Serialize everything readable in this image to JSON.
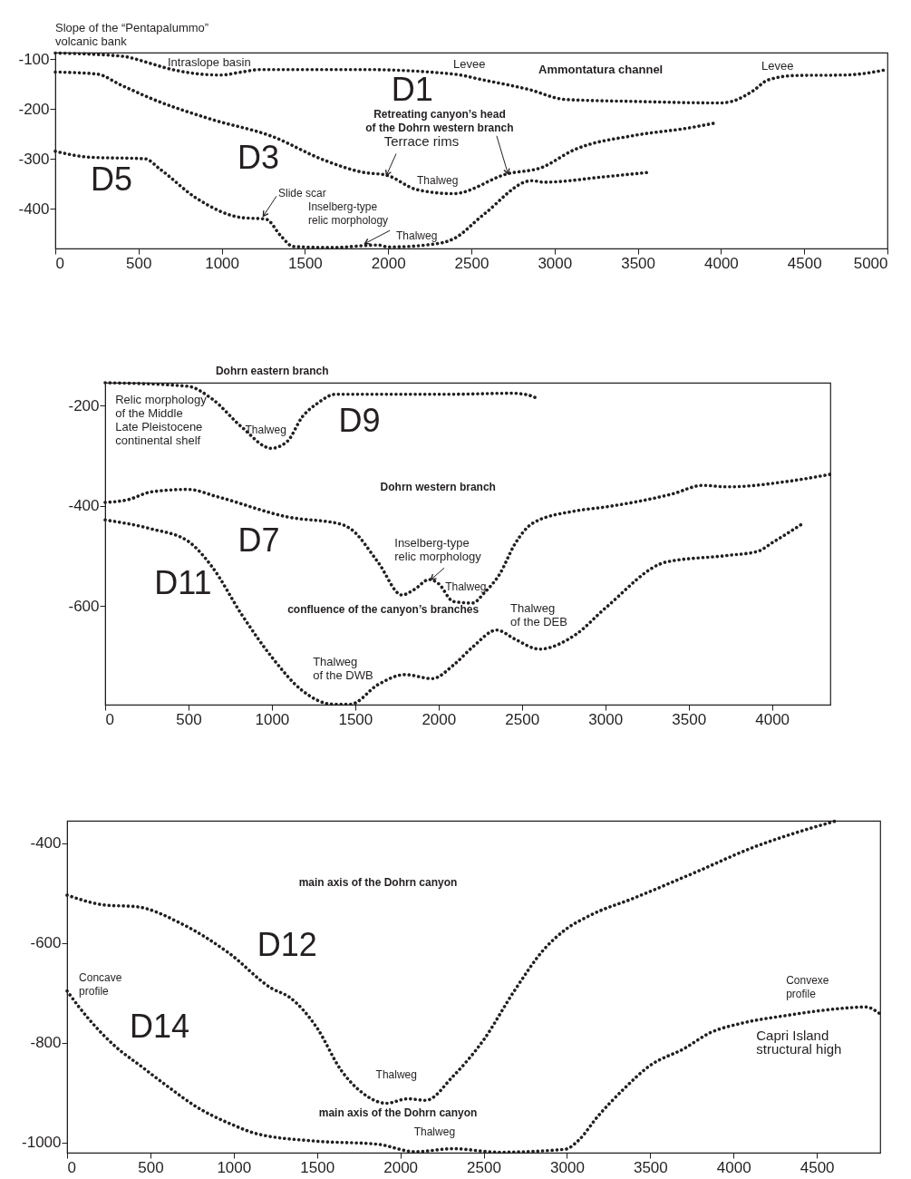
{
  "chart_data": [
    {
      "type": "line",
      "line_style": "dotted",
      "xlim": [
        0,
        5000
      ],
      "xticks": [
        0,
        500,
        1000,
        1500,
        2000,
        2500,
        3000,
        3500,
        4000,
        4500,
        5000
      ],
      "ylim": [
        -480,
        -87
      ],
      "yticks": [
        -100,
        -200,
        -300,
        -400
      ],
      "series": [
        {
          "name": "D1",
          "color": "#231f20",
          "x": [
            0,
            394,
            575,
            666,
            993,
            1120,
            1229,
            1846,
            2391,
            2573,
            2845,
            3064,
            3482,
            3991,
            4064,
            4191,
            4282,
            4445,
            4745,
            5000
          ],
          "values": [
            -88,
            -94,
            -109,
            -118,
            -132,
            -126,
            -121,
            -121,
            -130,
            -142,
            -161,
            -181,
            -185,
            -188,
            -185,
            -164,
            -142,
            -133,
            -132,
            -121
          ]
        },
        {
          "name": "D3",
          "color": "#231f20",
          "x": [
            0,
            249,
            394,
            575,
            939,
            1302,
            1610,
            1846,
            1991,
            2173,
            2391,
            2718,
            2918,
            3118,
            3482,
            3809,
            3955
          ],
          "values": [
            -126,
            -130,
            -152,
            -179,
            -221,
            -255,
            -302,
            -327,
            -333,
            -362,
            -370,
            -330,
            -318,
            -282,
            -253,
            -238,
            -229
          ]
        },
        {
          "name": "D5",
          "color": "#231f20",
          "x": [
            0,
            212,
            539,
            630,
            848,
            1120,
            1265,
            1356,
            1429,
            1665,
            1938,
            2000,
            2300,
            2391,
            2573,
            2864,
            2936,
            3300,
            3573
          ],
          "values": [
            -285,
            -297,
            -300,
            -321,
            -379,
            -418,
            -421,
            -455,
            -476,
            -478,
            -473,
            -477,
            -470,
            -461,
            -412,
            -344,
            -347,
            -336,
            -327
          ]
        }
      ],
      "annotations": [
        "Slope of the “Pentapalummo”\nvolcanic bank",
        "Intraslope basin",
        "Levee",
        "Ammontatura channel",
        "Levee",
        {
          "text": "Retreating canyon’s head\nof the Dohrn western branch",
          "x": 2720,
          "y": -330
        },
        {
          "text": "Terrace rims",
          "x": 1990,
          "y": -333
        },
        "Thalweg",
        {
          "text": "Slide scar",
          "x": 1250,
          "y": -415
        },
        {
          "text": "Inselberg-type\nrelic morphology",
          "x": 1860,
          "y": -470
        },
        "Thalweg"
      ]
    },
    {
      "type": "line",
      "line_style": "dotted",
      "xlim": [
        0,
        4350
      ],
      "xticks": [
        0,
        500,
        1000,
        1500,
        2000,
        2500,
        3000,
        3500,
        4000
      ],
      "ylim": [
        -797,
        -154
      ],
      "yticks": [
        -200,
        -400,
        -600
      ],
      "series": [
        {
          "name": "D9",
          "color": "#231f20",
          "x": [
            0,
            495,
            640,
            821,
            997,
            1093,
            1183,
            1274,
            1383,
            2089,
            2440,
            2531,
            2595
          ],
          "values": [
            -154,
            -161,
            -186,
            -243,
            -285,
            -271,
            -222,
            -195,
            -177,
            -177,
            -175,
            -178,
            -186
          ]
        },
        {
          "name": "D7",
          "color": "#231f20",
          "x": [
            0,
            132,
            277,
            495,
            676,
            1093,
            1419,
            1473,
            1636,
            1781,
            1854,
            1944,
            1999,
            2089,
            2204,
            2276,
            2367,
            2458,
            2567,
            2822,
            3004,
            3404,
            3586,
            3731,
            4095,
            4349
          ],
          "values": [
            -393,
            -388,
            -372,
            -367,
            -382,
            -422,
            -437,
            -446,
            -512,
            -578,
            -567,
            -547,
            -555,
            -591,
            -594,
            -573,
            -536,
            -476,
            -434,
            -410,
            -402,
            -376,
            -359,
            -362,
            -351,
            -337
          ]
        },
        {
          "name": "D11",
          "color": "#231f20",
          "x": [
            0,
            277,
            495,
            640,
            821,
            1002,
            1183,
            1365,
            1473,
            1636,
            1799,
            1962,
            2089,
            2204,
            2349,
            2458,
            2604,
            2822,
            3004,
            3367,
            3731,
            3913,
            4004,
            4186
          ],
          "values": [
            -428,
            -446,
            -470,
            -521,
            -618,
            -703,
            -769,
            -796,
            -796,
            -757,
            -737,
            -745,
            -718,
            -682,
            -648,
            -666,
            -686,
            -657,
            -603,
            -512,
            -499,
            -491,
            -473,
            -435
          ]
        }
      ],
      "annotations": [
        "Dohrn eastern branch",
        "Relic morphology\nof the Middle\nLate Pleistocene\ncontinental shelf",
        "Thalweg",
        "Dohrn western branch",
        {
          "text": "Inselberg-type\nrelic morphology",
          "x": 1955,
          "y": -547
        },
        "Thalweg",
        "confluence of the canyon’s branches",
        "Thalweg\nof the DEB",
        "Thalweg\nof the DWB"
      ]
    },
    {
      "type": "line",
      "line_style": "dotted",
      "xlim": [
        0,
        4880
      ],
      "xticks": [
        0,
        500,
        1000,
        1500,
        2000,
        2500,
        3000,
        3500,
        4000,
        4500
      ],
      "ylim": [
        -1020,
        -355
      ],
      "yticks": [
        -400,
        -600,
        -800,
        -1000
      ],
      "series": [
        {
          "name": "D12",
          "color": "#231f20",
          "x": [
            0,
            232,
            413,
            685,
            975,
            1229,
            1337,
            1500,
            1645,
            1772,
            1917,
            2044,
            2153,
            2316,
            2500,
            2682,
            2864,
            2991,
            3136,
            3409,
            3773,
            4136,
            4318,
            4618
          ],
          "values": [
            -504,
            -524,
            -527,
            -561,
            -621,
            -691,
            -709,
            -770,
            -855,
            -900,
            -921,
            -912,
            -915,
            -867,
            -794,
            -697,
            -612,
            -573,
            -545,
            -509,
            -458,
            -406,
            -385,
            -355
          ]
        },
        {
          "name": "D14",
          "color": "#231f20",
          "x": [
            0,
            69,
            286,
            449,
            631,
            757,
            993,
            1138,
            1500,
            1863,
            2089,
            2316,
            2591,
            2991,
            3064,
            3191,
            3336,
            3500,
            3700,
            3864,
            4045,
            4318,
            4682,
            4791,
            4880
          ],
          "values": [
            -696,
            -727,
            -806,
            -848,
            -894,
            -924,
            -964,
            -982,
            -997,
            -1003,
            -1018,
            -1012,
            -1019,
            -1013,
            -997,
            -945,
            -894,
            -845,
            -812,
            -779,
            -761,
            -745,
            -730,
            -728,
            -742
          ]
        }
      ],
      "annotations": [
        "main axis of the Dohrn canyon",
        "Concave\nprofile",
        "Thalweg",
        "main axis of the Dohrn canyon",
        "Thalweg",
        "Convexe\nprofile",
        "Capri Island\nstructural high"
      ]
    }
  ]
}
